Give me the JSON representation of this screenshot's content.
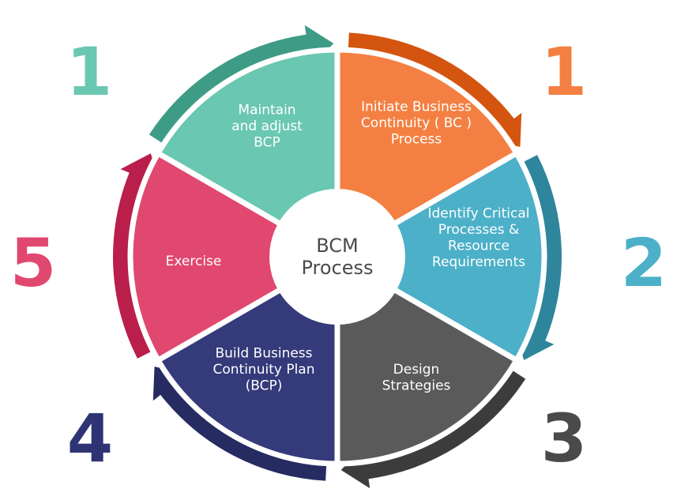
{
  "diagram": {
    "center": {
      "line1": "BCM",
      "line2": "Process"
    },
    "steps": [
      {
        "id": "initiate",
        "number": "1",
        "label_lines": [
          "Initiate Business",
          "Continuity ( BC )",
          "Process"
        ],
        "fill": "#F38042",
        "arrow": "#D4550F",
        "number_color": "#F38042"
      },
      {
        "id": "identify",
        "number": "2",
        "label_lines": [
          "Identify Critical",
          "Processes &",
          "Resource",
          "Requirements"
        ],
        "fill": "#4CB0C8",
        "arrow": "#2F859C",
        "number_color": "#4CB0C8"
      },
      {
        "id": "design",
        "number": "3",
        "label_lines": [
          "Design",
          "Strategies"
        ],
        "fill": "#5A5A5A",
        "arrow": "#3C3C3C",
        "number_color": "#4A4A4A"
      },
      {
        "id": "build",
        "number": "4",
        "label_lines": [
          "Build Business",
          "Continuity Plan",
          "(BCP)"
        ],
        "fill": "#343A7A",
        "arrow": "#262B62",
        "number_color": "#2E3473"
      },
      {
        "id": "exercise",
        "number": "5",
        "label_lines": [
          "Exercise"
        ],
        "fill": "#E0486F",
        "arrow": "#B91F4A",
        "number_color": "#E0486F"
      },
      {
        "id": "maintain",
        "number": "1",
        "label_lines": [
          "Maintain",
          "and  adjust",
          "BCP"
        ],
        "fill": "#6AC7B1",
        "arrow": "#3E9C86",
        "number_color": "#6AC7B1"
      }
    ]
  }
}
